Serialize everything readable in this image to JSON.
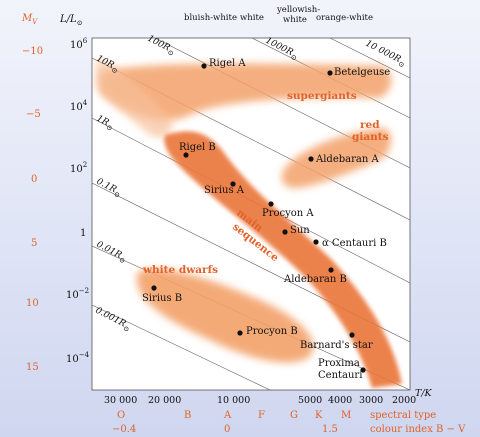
{
  "colors": {
    "band_fill": "#f3a169",
    "band_core": "#ea7538",
    "orange_text": "#e0622a",
    "ink": "#111111"
  },
  "axes": {
    "left_axis_label_main": "M",
    "left_axis_label_sub": "V",
    "lum_axis_label": "L/L",
    "lum_axis_sun_symbol": "⊙",
    "temp_axis_label": "T/K",
    "mv_ticks": [
      "−10",
      "−5",
      "0",
      "5",
      "10",
      "15"
    ],
    "lum_ticks": [
      {
        "base": "10",
        "exp": "6"
      },
      {
        "base": "10",
        "exp": "4"
      },
      {
        "base": "10",
        "exp": "2"
      },
      {
        "base": "1",
        "exp": ""
      },
      {
        "base": "10",
        "exp": "−2"
      },
      {
        "base": "10",
        "exp": "−4"
      }
    ],
    "temp_ticks": [
      "30 000",
      "20 000",
      "10 000",
      "5000",
      "4000",
      "3000",
      "2000"
    ]
  },
  "color_names": [
    "bluish-white",
    "white",
    "yellowish-white",
    "orange-white"
  ],
  "radius_lines": [
    "10 000R",
    "1000R",
    "100R",
    "10R",
    "1R",
    "0.1R",
    "0.01R",
    "0.001R"
  ],
  "radius_sun_symbol": "⊙",
  "regions": {
    "supergiants": "supergiants",
    "red_giants_1": "red",
    "red_giants_2": "giants",
    "main_sequence_1": "main",
    "main_sequence_2": "sequence",
    "white_dwarfs": "white dwarfs"
  },
  "stars": [
    "Rigel A",
    "Betelgeuse",
    "Rigel B",
    "Aldebaran A",
    "Sirius A",
    "Procyon A",
    "Sun",
    "α Centauri B",
    "Aldebaran B",
    "Sirius B",
    "Procyon B",
    "Barnard's star",
    "Proxima",
    "Centauri"
  ],
  "spectral": {
    "classes": [
      "O",
      "B",
      "A",
      "F",
      "G",
      "K",
      "M"
    ],
    "row_label": "spectral type"
  },
  "colour_index": {
    "values": [
      "−0.4",
      "0",
      "1.5"
    ],
    "row_label": "colour index B − V"
  }
}
